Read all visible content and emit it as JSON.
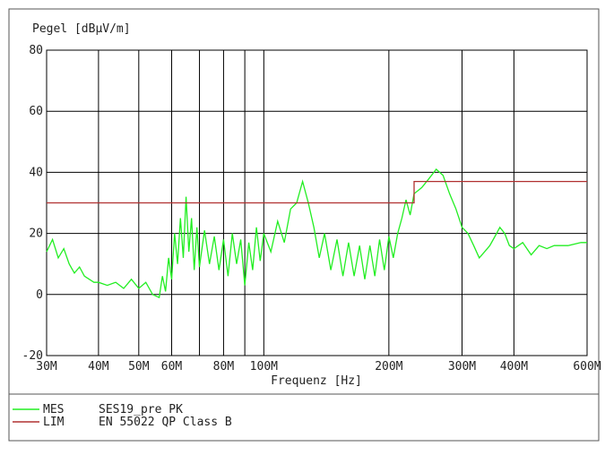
{
  "chart_data": {
    "type": "line",
    "title": "Pegel [dBµV/m]",
    "x_label": "Frequenz [Hz]",
    "xscale": "log",
    "grid": true,
    "xlim": [
      30000000,
      600000000
    ],
    "ylim": [
      -20,
      80
    ],
    "yticks": [
      -20,
      0,
      20,
      40,
      60,
      80
    ],
    "xticks": [
      {
        "value": 30000000,
        "label": "30M"
      },
      {
        "value": 40000000,
        "label": "40M"
      },
      {
        "value": 50000000,
        "label": "50M"
      },
      {
        "value": 60000000,
        "label": "60M"
      },
      {
        "value": 70000000,
        "label": null
      },
      {
        "value": 80000000,
        "label": "80M"
      },
      {
        "value": 90000000,
        "label": null
      },
      {
        "value": 100000000,
        "label": "100M"
      },
      {
        "value": 200000000,
        "label": "200M"
      },
      {
        "value": 300000000,
        "label": "300M"
      },
      {
        "value": 400000000,
        "label": "400M"
      },
      {
        "value": 600000000,
        "label": "600M"
      }
    ],
    "series": [
      {
        "name": "MES",
        "label": "SES19_pre PK",
        "color": "#22ee22",
        "x": [
          30000000,
          31000000,
          32000000,
          33000000,
          34000000,
          35000000,
          36000000,
          37000000,
          38000000,
          39000000,
          40000000,
          42000000,
          44000000,
          46000000,
          48000000,
          50000000,
          52000000,
          54000000,
          56000000,
          57000000,
          58000000,
          59000000,
          60000000,
          61000000,
          62000000,
          63000000,
          64000000,
          65000000,
          66000000,
          67000000,
          68000000,
          69000000,
          70000000,
          72000000,
          74000000,
          76000000,
          78000000,
          80000000,
          82000000,
          84000000,
          86000000,
          88000000,
          90000000,
          92000000,
          94000000,
          96000000,
          98000000,
          100000000,
          104000000,
          108000000,
          112000000,
          116000000,
          120000000,
          124000000,
          128000000,
          132000000,
          136000000,
          140000000,
          145000000,
          150000000,
          155000000,
          160000000,
          165000000,
          170000000,
          175000000,
          180000000,
          185000000,
          190000000,
          195000000,
          200000000,
          205000000,
          210000000,
          215000000,
          220000000,
          225000000,
          230000000,
          240000000,
          250000000,
          260000000,
          270000000,
          280000000,
          290000000,
          300000000,
          310000000,
          320000000,
          330000000,
          340000000,
          350000000,
          360000000,
          370000000,
          380000000,
          390000000,
          400000000,
          420000000,
          440000000,
          460000000,
          480000000,
          500000000,
          540000000,
          580000000,
          600000000
        ],
        "values": [
          14,
          18,
          12,
          15,
          10,
          7,
          9,
          6,
          5,
          4,
          4,
          3,
          4,
          2,
          5,
          2,
          4,
          0,
          -1,
          6,
          1,
          12,
          5,
          20,
          10,
          25,
          12,
          32,
          14,
          25,
          8,
          22,
          9,
          21,
          10,
          19,
          8,
          18,
          6,
          20,
          10,
          18,
          3,
          17,
          8,
          22,
          11,
          20,
          14,
          24,
          17,
          28,
          30,
          37,
          30,
          22,
          12,
          20,
          8,
          18,
          6,
          17,
          6,
          16,
          5,
          16,
          6,
          18,
          8,
          19,
          12,
          20,
          25,
          31,
          26,
          33,
          35,
          38,
          41,
          39,
          33,
          28,
          22,
          20,
          16,
          12,
          14,
          16,
          19,
          22,
          20,
          16,
          15,
          17,
          13,
          16,
          15,
          16,
          16,
          17,
          17
        ]
      },
      {
        "name": "LIM",
        "label": "EN 55022 QP Class B",
        "color": "#b03030",
        "x": [
          30000000,
          230000000,
          230000000,
          600000000
        ],
        "values": [
          30,
          30,
          37,
          37
        ]
      }
    ]
  }
}
